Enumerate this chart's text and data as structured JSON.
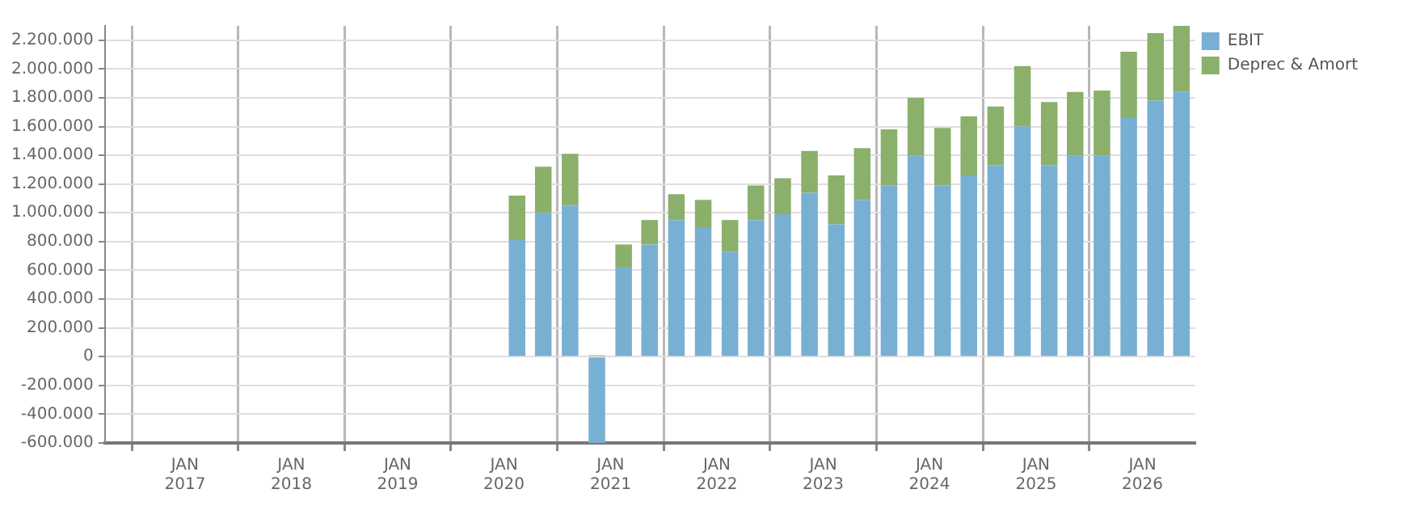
{
  "chart_data": {
    "type": "bar",
    "stacked": true,
    "x": [
      "2020-02-15",
      "2020-05-15",
      "2020-08-15",
      "2020-11-15",
      "2021-02-15",
      "2021-05-15",
      "2021-08-15",
      "2021-11-15",
      "2022-02-15",
      "2022-05-15",
      "2022-08-15",
      "2022-11-15",
      "2023-02-15",
      "2023-05-15",
      "2023-08-15",
      "2023-11-15",
      "2024-02-15",
      "2024-05-15",
      "2024-08-15",
      "2024-11-15",
      "2025-02-15",
      "2025-05-15",
      "2025-08-15",
      "2025-11-15",
      "2026-02-15",
      "2026-05-15"
    ],
    "series": [
      {
        "name": "EBIT",
        "color": "#78b0d3",
        "values": [
          810000,
          1000000,
          1050000,
          -600000,
          620000,
          780000,
          950000,
          900000,
          730000,
          950000,
          990000,
          1140000,
          920000,
          1090000,
          1190000,
          1400000,
          1190000,
          1260000,
          1330000,
          1600000,
          1330000,
          1400000,
          1400000,
          1660000,
          1780000,
          1840000
        ]
      },
      {
        "name": "Deprec & Amort",
        "color": "#8ab06c",
        "values": [
          310000,
          320000,
          360000,
          10000,
          160000,
          170000,
          180000,
          190000,
          220000,
          240000,
          250000,
          290000,
          340000,
          360000,
          390000,
          400000,
          400000,
          410000,
          410000,
          420000,
          440000,
          440000,
          450000,
          460000,
          470000,
          460000
        ]
      }
    ],
    "xlim": [
      "2016-04-01",
      "2026-07-01"
    ],
    "xticks": [
      {
        "value": "2017-01-01",
        "label": "JAN 2017"
      },
      {
        "value": "2018-01-01",
        "label": "JAN 2018"
      },
      {
        "value": "2019-01-01",
        "label": "JAN 2019"
      },
      {
        "value": "2020-01-01",
        "label": "JAN 2020"
      },
      {
        "value": "2021-01-01",
        "label": "JAN 2021"
      },
      {
        "value": "2022-01-01",
        "label": "JAN 2022"
      },
      {
        "value": "2023-01-01",
        "label": "JAN 2023"
      },
      {
        "value": "2024-01-01",
        "label": "JAN 2024"
      },
      {
        "value": "2025-01-01",
        "label": "JAN 2025"
      },
      {
        "value": "2026-01-01",
        "label": "JAN 2026"
      }
    ],
    "ylim": [
      -600000,
      2300000
    ],
    "yticks": [
      {
        "value": -600000,
        "label": "-600.000"
      },
      {
        "value": -400000,
        "label": "-400.000"
      },
      {
        "value": -200000,
        "label": "-200.000"
      },
      {
        "value": 0,
        "label": "0"
      },
      {
        "value": 200000,
        "label": "200.000"
      },
      {
        "value": 400000,
        "label": "400.000"
      },
      {
        "value": 600000,
        "label": "600.000"
      },
      {
        "value": 800000,
        "label": "800.000"
      },
      {
        "value": 1000000,
        "label": "1.000.000"
      },
      {
        "value": 1200000,
        "label": "1.200.000"
      },
      {
        "value": 1400000,
        "label": "1.400.000"
      },
      {
        "value": 1600000,
        "label": "1.600.000"
      },
      {
        "value": 1800000,
        "label": "1.800.000"
      },
      {
        "value": 2000000,
        "label": "2.000.000"
      },
      {
        "value": 2200000,
        "label": "2.200.000"
      }
    ],
    "grid": true,
    "legend": "top right"
  }
}
